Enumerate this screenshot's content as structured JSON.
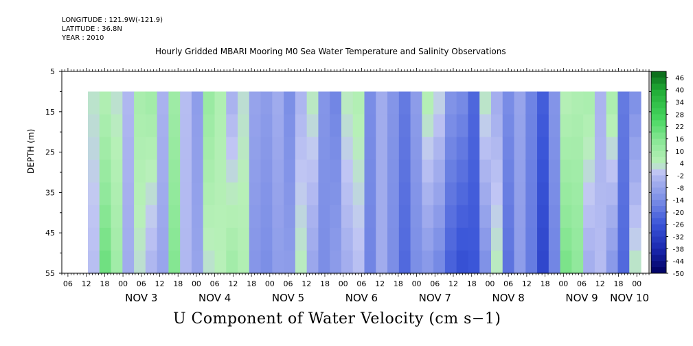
{
  "header": {
    "longitude": "LONGITUDE : 121.9W(-121.9)",
    "latitude": "LATITUDE : 36.8N",
    "year": "YEAR : 2010",
    "title": "Hourly Gridded MBARI Mooring M0 Sea Water Temperature and Salinity Observations"
  },
  "footer": {
    "variable_title": "U Component of Water Velocity (cm s−1)"
  },
  "chart_data": {
    "type": "heatmap",
    "ylabel": "DEPTH (m)",
    "xlabel": "",
    "y_ticks": [
      "5",
      "15",
      "25",
      "35",
      "45",
      "55"
    ],
    "y_range": [
      5,
      55
    ],
    "data_depth_range": [
      10,
      55
    ],
    "x_hour_ticks": [
      "06",
      "12",
      "18",
      "00",
      "06",
      "12",
      "18",
      "00",
      "06",
      "12",
      "18",
      "00",
      "06",
      "12",
      "18",
      "00",
      "06",
      "12",
      "18",
      "00",
      "06",
      "12",
      "18",
      "00",
      "06",
      "12",
      "18",
      "00",
      "06",
      "12",
      "18",
      "00"
    ],
    "x_day_labels": [
      "NOV 3",
      "NOV 4",
      "NOV 5",
      "NOV 6",
      "NOV 7",
      "NOV 8",
      "NOV 9",
      "NOV 10"
    ],
    "x_start": "2010-11-02 10:00",
    "x_end": "2010-11-10 10:00",
    "colorbar_labels": [
      "46",
      "40",
      "34",
      "28",
      "22",
      "16",
      "10",
      "4",
      "-2",
      "-8",
      "-14",
      "-20",
      "-26",
      "-32",
      "-38",
      "-44",
      "-50"
    ],
    "colorbar_range": [
      -50,
      49
    ],
    "profile_columns": [
      {
        "time": "Nov 2 12h",
        "surface": 3,
        "bottom": -2
      },
      {
        "time": "Nov 2 16h",
        "surface": 5,
        "bottom": 20
      },
      {
        "time": "Nov 2 20h",
        "surface": 2,
        "bottom": 10
      },
      {
        "time": "Nov 3 00h",
        "surface": -3,
        "bottom": -6
      },
      {
        "time": "Nov 3 04h",
        "surface": 8,
        "bottom": 2
      },
      {
        "time": "Nov 3 08h",
        "surface": 10,
        "bottom": -4
      },
      {
        "time": "Nov 3 12h",
        "surface": -4,
        "bottom": -8
      },
      {
        "time": "Nov 3 16h",
        "surface": 10,
        "bottom": 16
      },
      {
        "time": "Nov 3 20h",
        "surface": -2,
        "bottom": -3
      },
      {
        "time": "Nov 4 00h",
        "surface": -10,
        "bottom": -8
      },
      {
        "time": "Nov 4 04h",
        "surface": 12,
        "bottom": 2
      },
      {
        "time": "Nov 4 08h",
        "surface": 6,
        "bottom": 4
      },
      {
        "time": "Nov 4 12h",
        "surface": -5,
        "bottom": 10
      },
      {
        "time": "Nov 4 16h",
        "surface": 2,
        "bottom": 6
      },
      {
        "time": "Nov 4 20h",
        "surface": -8,
        "bottom": -12
      },
      {
        "time": "Nov 5 00h",
        "surface": -10,
        "bottom": -14
      },
      {
        "time": "Nov 5 04h",
        "surface": -6,
        "bottom": -10
      },
      {
        "time": "Nov 5 08h",
        "surface": -14,
        "bottom": -10
      },
      {
        "time": "Nov 5 12h",
        "surface": -4,
        "bottom": 4
      },
      {
        "time": "Nov 5 16h",
        "surface": 4,
        "bottom": -8
      },
      {
        "time": "Nov 5 20h",
        "surface": -12,
        "bottom": -14
      },
      {
        "time": "Nov 6 00h",
        "surface": -16,
        "bottom": -10
      },
      {
        "time": "Nov 6 04h",
        "surface": 4,
        "bottom": -6
      },
      {
        "time": "Nov 6 08h",
        "surface": 6,
        "bottom": -2
      },
      {
        "time": "Nov 6 12h",
        "surface": -14,
        "bottom": -16
      },
      {
        "time": "Nov 6 16h",
        "surface": -6,
        "bottom": -6
      },
      {
        "time": "Nov 6 20h",
        "surface": -12,
        "bottom": -14
      },
      {
        "time": "Nov 7 00h",
        "surface": -18,
        "bottom": -22
      },
      {
        "time": "Nov 7 04h",
        "surface": -10,
        "bottom": -14
      },
      {
        "time": "Nov 7 08h",
        "surface": 6,
        "bottom": -12
      },
      {
        "time": "Nov 7 12h",
        "surface": 2,
        "bottom": -16
      },
      {
        "time": "Nov 7 16h",
        "surface": -12,
        "bottom": -24
      },
      {
        "time": "Nov 7 20h",
        "surface": -14,
        "bottom": -28
      },
      {
        "time": "Nov 8 00h",
        "surface": -22,
        "bottom": -26
      },
      {
        "time": "Nov 8 04h",
        "surface": 4,
        "bottom": -14
      },
      {
        "time": "Nov 8 08h",
        "surface": -6,
        "bottom": 4
      },
      {
        "time": "Nov 8 12h",
        "surface": -14,
        "bottom": -20
      },
      {
        "time": "Nov 8 16h",
        "surface": -8,
        "bottom": -10
      },
      {
        "time": "Nov 8 20h",
        "surface": -16,
        "bottom": -18
      },
      {
        "time": "Nov 9 00h",
        "surface": -24,
        "bottom": -30
      },
      {
        "time": "Nov 9 04h",
        "surface": -12,
        "bottom": -16
      },
      {
        "time": "Nov 9 08h",
        "surface": 4,
        "bottom": 18
      },
      {
        "time": "Nov 9 12h",
        "surface": 6,
        "bottom": 14
      },
      {
        "time": "Nov 9 16h",
        "surface": 8,
        "bottom": -6
      },
      {
        "time": "Nov 9 20h",
        "surface": -4,
        "bottom": -2
      },
      {
        "time": "Nov 10 00h",
        "surface": 8,
        "bottom": -12
      },
      {
        "time": "Nov 10 04h",
        "surface": -18,
        "bottom": -22
      },
      {
        "time": "Nov 10 08h",
        "surface": -14,
        "bottom": 4
      }
    ]
  }
}
